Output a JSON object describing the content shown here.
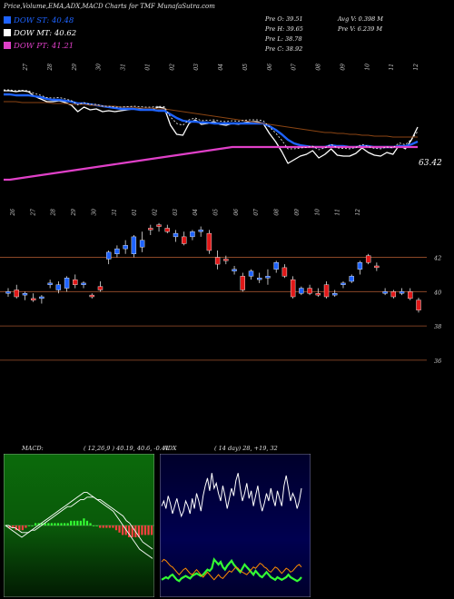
{
  "header": {
    "title": "Price,Volume,EMA,ADX,MACD Charts for TMF MunafaSutra.com"
  },
  "legend": [
    {
      "label": "DOW ST: 40.48",
      "color": "#1e63ff"
    },
    {
      "label": "DOW MT: 40.62",
      "color": "#ffffff"
    },
    {
      "label": "DOW PT: 41.21",
      "color": "#e040c8"
    }
  ],
  "stats": {
    "open": "Pre  O: 39.51",
    "high": "Pre  H: 39.65",
    "low": "Pre  L: 38.78",
    "close": "Pre  C: 38.92",
    "avg_volume": "Avg V: 0.398  M",
    "pre_volume": "Pre  V: 6.239 M"
  },
  "colors": {
    "up_candle": "#1e63ff",
    "down_candle": "#e01818",
    "grid": "#a0522d",
    "macd_bg": "#0a5a0a",
    "adx_bg": "#00003a",
    "adx_line": "#ffffff",
    "plus_di": "#33ff33",
    "minus_di": "#ff8c00"
  },
  "chart_data": [
    {
      "type": "line",
      "title": "",
      "right_label": "63.42",
      "x_labels": [
        "27",
        "28",
        "29",
        "30",
        "31",
        "01",
        "02",
        "03",
        "04",
        "05",
        "06",
        "07",
        "08",
        "09",
        "10",
        "11",
        "12"
      ],
      "series": [
        {
          "name": "",
          "color": "#ffffff",
          "values": [
            58,
            58,
            57,
            58,
            57,
            52,
            49,
            46,
            46,
            47,
            45,
            42,
            35,
            40,
            37,
            38,
            35,
            36,
            35,
            36,
            37,
            38,
            38,
            37,
            37,
            40,
            39,
            20,
            10,
            9,
            22,
            26,
            21,
            22,
            24,
            21,
            20,
            22,
            21,
            23,
            24,
            24,
            22,
            11,
            2,
            -9,
            -22,
            -18,
            -14,
            -12,
            -8,
            -16,
            -12,
            -6,
            -13,
            -14,
            -14,
            -11,
            -5,
            -10,
            -13,
            -14,
            -10,
            -12,
            -2,
            -6,
            4,
            18
          ]
        },
        {
          "name": "",
          "color": "#1e63ff",
          "values": [
            54,
            54,
            53,
            53,
            53,
            52,
            51,
            49,
            48,
            48,
            47,
            46,
            44,
            44,
            43,
            42,
            41,
            40,
            39,
            38,
            38,
            38,
            37,
            37,
            37,
            36,
            36,
            32,
            28,
            25,
            24,
            24,
            23,
            23,
            22,
            22,
            22,
            22,
            22,
            22,
            22,
            22,
            22,
            19,
            15,
            10,
            4,
            0,
            -2,
            -3,
            -4,
            -4,
            -4,
            -2,
            -3,
            -3,
            -4,
            -4,
            -3,
            -3,
            -4,
            -4,
            -4,
            -4,
            -3,
            -3,
            -1,
            2
          ]
        },
        {
          "name": "",
          "color": "#e040c8",
          "values": [
            -40,
            -40,
            -39,
            -38,
            -37,
            -36,
            -35,
            -34,
            -33,
            -32,
            -31,
            -30,
            -29,
            -28,
            -27,
            -26,
            -25,
            -24,
            -23,
            -22,
            -21,
            -20,
            -19,
            -18,
            -17,
            -16,
            -15,
            -14,
            -13,
            -12,
            -11,
            -10,
            -9,
            -8,
            -7,
            -6,
            -5,
            -4,
            -4,
            -4,
            -4,
            -4,
            -4,
            -4,
            -4,
            -4,
            -4,
            -4,
            -4,
            -4,
            -4,
            -4,
            -4,
            -4,
            -4,
            -4,
            -4,
            -4,
            -4,
            -4,
            -4,
            -4,
            -4,
            -4,
            -4,
            -4,
            -4,
            -4
          ]
        },
        {
          "name": "",
          "color": "#8b4513",
          "values": [
            46,
            46,
            46,
            45,
            45,
            45,
            45,
            45,
            44,
            44,
            44,
            43,
            43,
            43,
            42,
            42,
            41,
            41,
            41,
            40,
            40,
            40,
            39,
            39,
            39,
            38,
            38,
            37,
            36,
            35,
            34,
            33,
            32,
            31,
            30,
            29,
            28,
            27,
            26,
            25,
            24,
            23,
            22,
            21,
            20,
            19,
            18,
            17,
            16,
            15,
            14,
            13,
            12,
            12,
            11,
            11,
            10,
            10,
            9,
            9,
            8,
            8,
            8,
            7,
            7,
            7,
            7,
            7
          ]
        }
      ]
    },
    {
      "type": "bar",
      "title": "",
      "x_labels": [
        "26",
        "27",
        "28",
        "29",
        "30",
        "31",
        "01",
        "02",
        "03",
        "04",
        "05",
        "06",
        "07",
        "08",
        "09",
        "10",
        "11",
        "12"
      ],
      "y_ticks": [
        42,
        40,
        38,
        36
      ],
      "ylim": [
        35.2,
        44.2
      ],
      "candles": [
        {
          "o": 39.9,
          "h": 40.2,
          "l": 39.7,
          "c": 40.0
        },
        {
          "o": 40.1,
          "h": 40.4,
          "l": 39.6,
          "c": 39.7
        },
        {
          "o": 39.8,
          "h": 40.0,
          "l": 39.5,
          "c": 39.9
        },
        {
          "o": 39.6,
          "h": 39.9,
          "l": 39.4,
          "c": 39.5
        },
        {
          "o": 39.6,
          "h": 39.8,
          "l": 39.3,
          "c": 39.7
        },
        {
          "o": 40.4,
          "h": 40.7,
          "l": 40.2,
          "c": 40.5
        },
        {
          "o": 40.1,
          "h": 40.6,
          "l": 39.9,
          "c": 40.4
        },
        {
          "o": 40.2,
          "h": 40.9,
          "l": 40.0,
          "c": 40.8
        },
        {
          "o": 40.7,
          "h": 41.0,
          "l": 40.2,
          "c": 40.4
        },
        {
          "o": 40.4,
          "h": 40.6,
          "l": 40.2,
          "c": 40.5
        },
        {
          "o": 39.8,
          "h": 39.9,
          "l": 39.6,
          "c": 39.7
        },
        {
          "o": 40.3,
          "h": 40.6,
          "l": 40.0,
          "c": 40.1
        },
        {
          "o": 41.9,
          "h": 42.4,
          "l": 41.6,
          "c": 42.3
        },
        {
          "o": 42.2,
          "h": 42.7,
          "l": 42.0,
          "c": 42.5
        },
        {
          "o": 42.5,
          "h": 43.0,
          "l": 42.2,
          "c": 42.7
        },
        {
          "o": 42.2,
          "h": 43.3,
          "l": 42.0,
          "c": 43.2
        },
        {
          "o": 42.6,
          "h": 43.5,
          "l": 42.3,
          "c": 43.0
        },
        {
          "o": 43.7,
          "h": 43.9,
          "l": 43.3,
          "c": 43.6
        },
        {
          "o": 43.9,
          "h": 44.0,
          "l": 43.5,
          "c": 43.8
        },
        {
          "o": 43.7,
          "h": 43.9,
          "l": 43.4,
          "c": 43.5
        },
        {
          "o": 43.2,
          "h": 43.6,
          "l": 42.9,
          "c": 43.4
        },
        {
          "o": 43.2,
          "h": 43.5,
          "l": 42.7,
          "c": 42.8
        },
        {
          "o": 43.2,
          "h": 43.6,
          "l": 43.0,
          "c": 43.5
        },
        {
          "o": 43.5,
          "h": 43.8,
          "l": 43.2,
          "c": 43.6
        },
        {
          "o": 43.4,
          "h": 43.6,
          "l": 42.2,
          "c": 42.4
        },
        {
          "o": 42.0,
          "h": 42.4,
          "l": 41.3,
          "c": 41.6
        },
        {
          "o": 41.9,
          "h": 42.1,
          "l": 41.6,
          "c": 41.8
        },
        {
          "o": 41.2,
          "h": 41.5,
          "l": 41.0,
          "c": 41.3
        },
        {
          "o": 40.9,
          "h": 41.1,
          "l": 40.0,
          "c": 40.1
        },
        {
          "o": 40.9,
          "h": 41.3,
          "l": 40.7,
          "c": 41.2
        },
        {
          "o": 40.7,
          "h": 41.1,
          "l": 40.5,
          "c": 40.8
        },
        {
          "o": 40.8,
          "h": 41.3,
          "l": 40.4,
          "c": 40.9
        },
        {
          "o": 41.3,
          "h": 41.8,
          "l": 41.1,
          "c": 41.7
        },
        {
          "o": 41.4,
          "h": 41.6,
          "l": 40.8,
          "c": 40.9
        },
        {
          "o": 40.7,
          "h": 40.9,
          "l": 39.6,
          "c": 39.7
        },
        {
          "o": 39.9,
          "h": 40.3,
          "l": 39.8,
          "c": 40.2
        },
        {
          "o": 40.2,
          "h": 40.4,
          "l": 39.8,
          "c": 39.9
        },
        {
          "o": 39.9,
          "h": 40.2,
          "l": 39.7,
          "c": 39.8
        },
        {
          "o": 40.4,
          "h": 40.6,
          "l": 39.6,
          "c": 39.7
        },
        {
          "o": 39.8,
          "h": 40.1,
          "l": 39.7,
          "c": 39.9
        },
        {
          "o": 40.4,
          "h": 40.6,
          "l": 40.2,
          "c": 40.5
        },
        {
          "o": 40.6,
          "h": 41.0,
          "l": 40.5,
          "c": 40.9
        },
        {
          "o": 41.3,
          "h": 41.8,
          "l": 41.0,
          "c": 41.7
        },
        {
          "o": 42.1,
          "h": 42.2,
          "l": 41.6,
          "c": 41.7
        },
        {
          "o": 41.5,
          "h": 41.7,
          "l": 41.2,
          "c": 41.4
        },
        {
          "o": 39.9,
          "h": 40.2,
          "l": 39.8,
          "c": 40.0
        },
        {
          "o": 40.0,
          "h": 40.1,
          "l": 39.6,
          "c": 39.7
        },
        {
          "o": 39.9,
          "h": 40.2,
          "l": 39.8,
          "c": 40.0
        },
        {
          "o": 40.0,
          "h": 40.2,
          "l": 39.5,
          "c": 39.6
        },
        {
          "o": 39.51,
          "h": 39.65,
          "l": 38.78,
          "c": 38.92
        }
      ]
    },
    {
      "type": "line",
      "title": "MACD:",
      "params": "( 12,26,9 ) 40.19, 40.6, -0.41",
      "series": [
        {
          "name": "",
          "color": "#ffffff",
          "values": [
            0,
            -1,
            -2,
            -3,
            -4,
            -5,
            -4,
            -3,
            -2,
            -1,
            0,
            1,
            2,
            3,
            4,
            5,
            6,
            7,
            8,
            9,
            10,
            11,
            12,
            13,
            14,
            14,
            13,
            12,
            11,
            10,
            9,
            8,
            7,
            6,
            4,
            2,
            0,
            -2,
            -4,
            -6,
            -8,
            -10,
            -11,
            -12,
            -13,
            -14
          ]
        },
        {
          "name": "",
          "color": "#ffffff",
          "values": [
            0,
            0,
            -1,
            -1,
            -2,
            -3,
            -3,
            -3,
            -2,
            -2,
            -1,
            0,
            1,
            2,
            3,
            4,
            5,
            6,
            7,
            8,
            8,
            9,
            10,
            11,
            11,
            12,
            12,
            12,
            11,
            11,
            10,
            9,
            8,
            7,
            6,
            5,
            4,
            2,
            1,
            -1,
            -3,
            -5,
            -7,
            -8,
            -9,
            -10
          ]
        }
      ],
      "histogram": [
        0,
        -1,
        -1,
        -2,
        -2,
        -2,
        -1,
        0,
        0,
        1,
        1,
        1,
        1,
        1,
        1,
        1,
        1,
        1,
        1,
        1,
        2,
        2,
        2,
        2,
        3,
        2,
        1,
        0,
        0,
        -1,
        -1,
        -1,
        -1,
        -1,
        -2,
        -3,
        -4,
        -4,
        -5,
        -5,
        -5,
        -5,
        -4,
        -4,
        -4,
        -4
      ]
    },
    {
      "type": "line",
      "title": "ADX",
      "params": "( 14  day) 28, +19, 32",
      "series": [
        {
          "name": "",
          "color": "#ffffff",
          "values": [
            66,
            70,
            64,
            74,
            68,
            60,
            66,
            72,
            64,
            58,
            62,
            70,
            66,
            60,
            72,
            64,
            76,
            70,
            62,
            74,
            82,
            88,
            78,
            92,
            80,
            84,
            76,
            70,
            82,
            74,
            64,
            72,
            80,
            74,
            86,
            92,
            80,
            70,
            76,
            84,
            72,
            78,
            66,
            74,
            82,
            70,
            62,
            68,
            76,
            70,
            80,
            72,
            66,
            78,
            72,
            66,
            82,
            90,
            80,
            70,
            76,
            72,
            64,
            70,
            80
          ]
        },
        {
          "name": "",
          "color": "#33ff33",
          "values": [
            8,
            9,
            10,
            9,
            11,
            12,
            10,
            8,
            7,
            9,
            10,
            11,
            10,
            9,
            11,
            12,
            13,
            12,
            11,
            12,
            14,
            16,
            15,
            17,
            24,
            22,
            20,
            22,
            18,
            16,
            19,
            21,
            23,
            20,
            18,
            16,
            14,
            17,
            20,
            18,
            16,
            14,
            12,
            15,
            13,
            11,
            10,
            12,
            14,
            12,
            10,
            9,
            8,
            10,
            9,
            8,
            9,
            10,
            12,
            10,
            9,
            8,
            7,
            8,
            10
          ]
        },
        {
          "name": "",
          "color": "#ff8c00",
          "values": [
            22,
            24,
            23,
            21,
            19,
            18,
            16,
            14,
            12,
            14,
            16,
            17,
            15,
            13,
            12,
            14,
            16,
            14,
            12,
            10,
            12,
            14,
            12,
            10,
            8,
            10,
            12,
            10,
            9,
            11,
            13,
            15,
            14,
            16,
            18,
            17,
            15,
            14,
            13,
            12,
            14,
            16,
            18,
            17,
            19,
            21,
            20,
            18,
            17,
            15,
            14,
            16,
            18,
            17,
            15,
            13,
            15,
            17,
            16,
            14,
            15,
            17,
            19,
            20,
            18
          ]
        }
      ]
    }
  ]
}
